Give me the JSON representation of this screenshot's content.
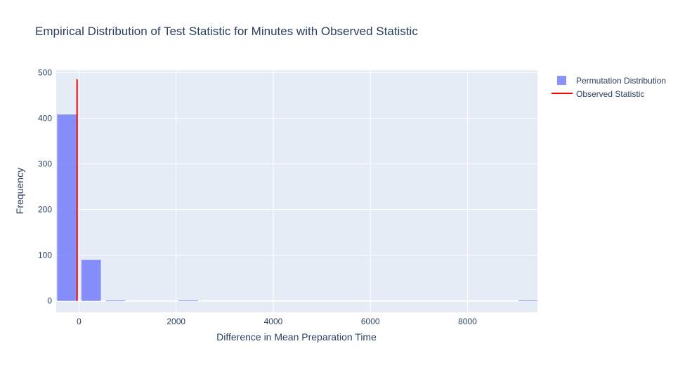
{
  "chart_data": {
    "type": "bar",
    "title": "Empirical Distribution of Test Statistic for Minutes with Observed Statistic",
    "xlabel": "Difference in Mean Preparation Time",
    "ylabel": "Frequency",
    "xlim": [
      -470,
      9440
    ],
    "ylim": [
      -25,
      505
    ],
    "xticks": [
      0,
      2000,
      4000,
      6000,
      8000
    ],
    "yticks": [
      0,
      100,
      200,
      300,
      400,
      500
    ],
    "grid": true,
    "legend_position": "top-right",
    "series": [
      {
        "name": "Permutation Distribution",
        "color": "#636efa",
        "opacity": 0.75,
        "bin_width": 500,
        "bins": [
          {
            "x0": -500,
            "x1": 0,
            "count": 408
          },
          {
            "x0": 0,
            "x1": 500,
            "count": 90
          },
          {
            "x0": 500,
            "x1": 1000,
            "count": 1
          },
          {
            "x0": 2000,
            "x1": 2500,
            "count": 1
          },
          {
            "x0": 9000,
            "x1": 9500,
            "count": 1
          }
        ]
      },
      {
        "name": "Observed Statistic",
        "color": "#ff0000",
        "type": "line",
        "x": -40,
        "y": [
          0,
          485
        ]
      }
    ]
  }
}
